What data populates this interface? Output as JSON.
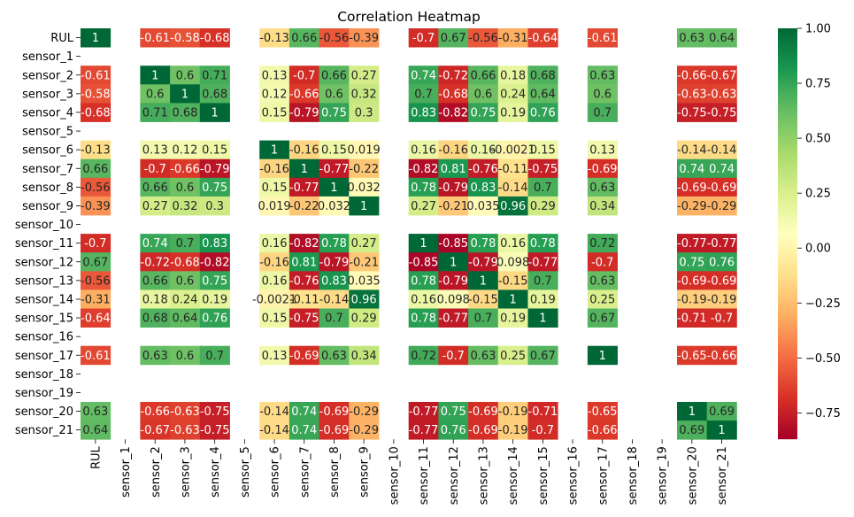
{
  "chart_data": {
    "type": "heatmap",
    "title": "Correlation Heatmap",
    "labels": [
      "RUL",
      "sensor_1",
      "sensor_2",
      "sensor_3",
      "sensor_4",
      "sensor_5",
      "sensor_6",
      "sensor_7",
      "sensor_8",
      "sensor_9",
      "sensor_10",
      "sensor_11",
      "sensor_12",
      "sensor_13",
      "sensor_14",
      "sensor_15",
      "sensor_16",
      "sensor_17",
      "sensor_18",
      "sensor_19",
      "sensor_20",
      "sensor_21"
    ],
    "vmin": -0.87,
    "vmax": 1.0,
    "colormap": "RdYlGn",
    "colorbar_ticks": [
      "1.00",
      "0.75",
      "0.50",
      "0.25",
      "0.00",
      "−0.25",
      "−0.50",
      "−0.75"
    ],
    "colorbar_values": [
      1.0,
      0.75,
      0.5,
      0.25,
      0.0,
      -0.25,
      -0.5,
      -0.75
    ],
    "matrix": [
      [
        1,
        null,
        -0.61,
        -0.58,
        -0.68,
        null,
        -0.13,
        0.66,
        -0.56,
        -0.39,
        null,
        -0.7,
        0.67,
        -0.56,
        -0.31,
        -0.64,
        null,
        -0.61,
        null,
        null,
        0.63,
        0.64
      ],
      [
        null,
        null,
        null,
        null,
        null,
        null,
        null,
        null,
        null,
        null,
        null,
        null,
        null,
        null,
        null,
        null,
        null,
        null,
        null,
        null,
        null,
        null
      ],
      [
        -0.61,
        null,
        1,
        0.6,
        0.71,
        null,
        0.13,
        -0.7,
        0.66,
        0.27,
        null,
        0.74,
        -0.72,
        0.66,
        0.18,
        0.68,
        null,
        0.63,
        null,
        null,
        -0.66,
        -0.67
      ],
      [
        -0.58,
        null,
        0.6,
        1,
        0.68,
        null,
        0.12,
        -0.66,
        0.6,
        0.32,
        null,
        0.7,
        -0.68,
        0.6,
        0.24,
        0.64,
        null,
        0.6,
        null,
        null,
        -0.63,
        -0.63
      ],
      [
        -0.68,
        null,
        0.71,
        0.68,
        1,
        null,
        0.15,
        -0.79,
        0.75,
        0.3,
        null,
        0.83,
        -0.82,
        0.75,
        0.19,
        0.76,
        null,
        0.7,
        null,
        null,
        -0.75,
        -0.75
      ],
      [
        null,
        null,
        null,
        null,
        null,
        null,
        null,
        null,
        null,
        null,
        null,
        null,
        null,
        null,
        null,
        null,
        null,
        null,
        null,
        null,
        null,
        null
      ],
      [
        -0.13,
        null,
        0.13,
        0.12,
        0.15,
        null,
        1,
        -0.16,
        0.15,
        0.019,
        null,
        0.16,
        -0.16,
        0.16,
        -0.0021,
        0.15,
        null,
        0.13,
        null,
        null,
        -0.14,
        -0.14
      ],
      [
        0.66,
        null,
        -0.7,
        -0.66,
        -0.79,
        null,
        -0.16,
        1,
        -0.77,
        -0.22,
        null,
        -0.82,
        0.81,
        -0.76,
        -0.11,
        -0.75,
        null,
        -0.69,
        null,
        null,
        0.74,
        0.74
      ],
      [
        -0.56,
        null,
        0.66,
        0.6,
        0.75,
        null,
        0.15,
        -0.77,
        1,
        0.032,
        null,
        0.78,
        -0.79,
        0.83,
        -0.14,
        0.7,
        null,
        0.63,
        null,
        null,
        -0.69,
        -0.69
      ],
      [
        -0.39,
        null,
        0.27,
        0.32,
        0.3,
        null,
        0.019,
        -0.22,
        0.032,
        1,
        null,
        0.27,
        -0.21,
        0.035,
        0.96,
        0.29,
        null,
        0.34,
        null,
        null,
        -0.29,
        -0.29
      ],
      [
        null,
        null,
        null,
        null,
        null,
        null,
        null,
        null,
        null,
        null,
        null,
        null,
        null,
        null,
        null,
        null,
        null,
        null,
        null,
        null,
        null,
        null
      ],
      [
        -0.7,
        null,
        0.74,
        0.7,
        0.83,
        null,
        0.16,
        -0.82,
        0.78,
        0.27,
        null,
        1,
        -0.85,
        0.78,
        0.16,
        0.78,
        null,
        0.72,
        null,
        null,
        -0.77,
        -0.77
      ],
      [
        0.67,
        null,
        -0.72,
        -0.68,
        -0.82,
        null,
        -0.16,
        0.81,
        -0.79,
        -0.21,
        null,
        -0.85,
        1,
        -0.79,
        0.098,
        -0.77,
        null,
        -0.7,
        null,
        null,
        0.75,
        0.76
      ],
      [
        -0.56,
        null,
        0.66,
        0.6,
        0.75,
        null,
        0.16,
        -0.76,
        0.83,
        0.035,
        null,
        0.78,
        -0.79,
        1,
        -0.15,
        0.7,
        null,
        0.63,
        null,
        null,
        -0.69,
        -0.69
      ],
      [
        -0.31,
        null,
        0.18,
        0.24,
        0.19,
        null,
        -0.0021,
        -0.11,
        -0.14,
        0.96,
        null,
        0.16,
        0.098,
        -0.15,
        1,
        0.19,
        null,
        0.25,
        null,
        null,
        -0.19,
        -0.19
      ],
      [
        -0.64,
        null,
        0.68,
        0.64,
        0.76,
        null,
        0.15,
        -0.75,
        0.7,
        0.29,
        null,
        0.78,
        -0.77,
        0.7,
        0.19,
        1,
        null,
        0.67,
        null,
        null,
        -0.71,
        -0.7
      ],
      [
        null,
        null,
        null,
        null,
        null,
        null,
        null,
        null,
        null,
        null,
        null,
        null,
        null,
        null,
        null,
        null,
        null,
        null,
        null,
        null,
        null,
        null
      ],
      [
        -0.61,
        null,
        0.63,
        0.6,
        0.7,
        null,
        0.13,
        -0.69,
        0.63,
        0.34,
        null,
        0.72,
        -0.7,
        0.63,
        0.25,
        0.67,
        null,
        1,
        null,
        null,
        -0.65,
        -0.66
      ],
      [
        null,
        null,
        null,
        null,
        null,
        null,
        null,
        null,
        null,
        null,
        null,
        null,
        null,
        null,
        null,
        null,
        null,
        null,
        null,
        null,
        null,
        null
      ],
      [
        null,
        null,
        null,
        null,
        null,
        null,
        null,
        null,
        null,
        null,
        null,
        null,
        null,
        null,
        null,
        null,
        null,
        null,
        null,
        null,
        null,
        null
      ],
      [
        0.63,
        null,
        -0.66,
        -0.63,
        -0.75,
        null,
        -0.14,
        0.74,
        -0.69,
        -0.29,
        null,
        -0.77,
        0.75,
        -0.69,
        -0.19,
        -0.71,
        null,
        -0.65,
        null,
        null,
        1,
        0.69
      ],
      [
        0.64,
        null,
        -0.67,
        -0.63,
        -0.75,
        null,
        -0.14,
        0.74,
        -0.69,
        -0.29,
        null,
        -0.77,
        0.76,
        -0.69,
        -0.19,
        -0.7,
        null,
        -0.66,
        null,
        null,
        0.69,
        1
      ]
    ]
  }
}
